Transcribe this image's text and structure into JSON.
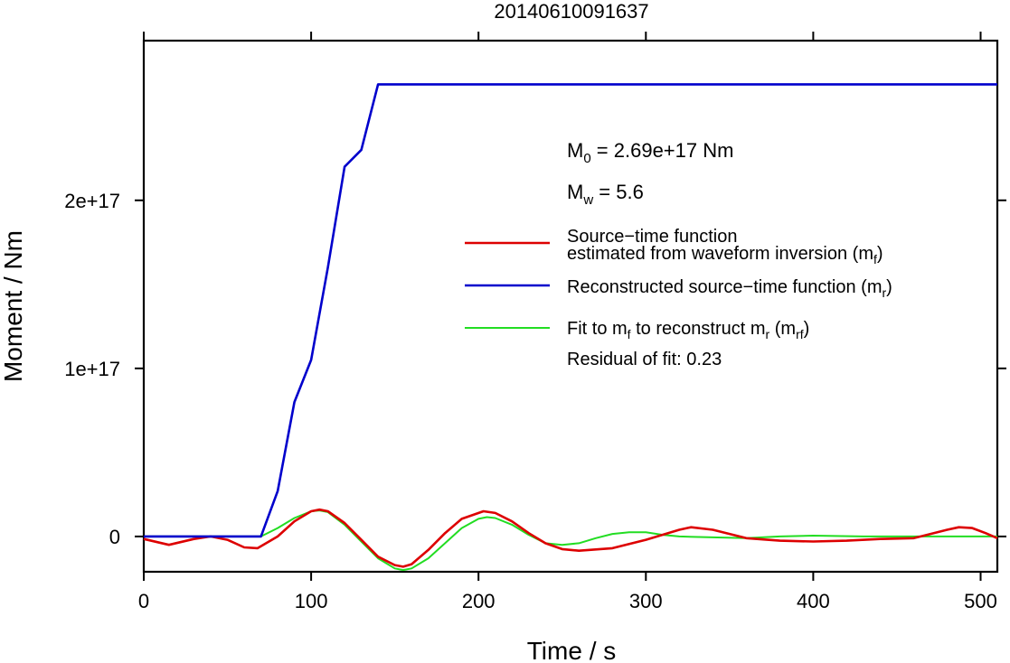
{
  "chart_data": {
    "type": "line",
    "title": "20140610091637",
    "xlabel": "Time / s",
    "ylabel": "Moment / Nm",
    "xlim": [
      0,
      510
    ],
    "ylim": [
      -2.1e+16,
      2.95e+17
    ],
    "x_ticks": [
      0,
      100,
      200,
      300,
      400,
      500
    ],
    "x_tick_labels": [
      "0",
      "100",
      "200",
      "300",
      "400",
      "500"
    ],
    "y_ticks": [
      0,
      1e+17,
      2e+17
    ],
    "y_tick_labels": [
      "0",
      "1e+17",
      "2e+17"
    ],
    "grid": false,
    "annotations": {
      "m0_prefix": "M",
      "m0_sub": "0",
      "m0_rest": " = 2.69e+17 Nm",
      "mw_prefix": "M",
      "mw_sub": "w",
      "mw_rest": " = 5.6"
    },
    "legend": {
      "position": "right",
      "red_line1": "Source−time function",
      "red_line2a": "estimated from waveform inversion (m",
      "red_line2_sub": "f",
      "red_line2b": ")",
      "blue_a": "Reconstructed source−time function (m",
      "blue_sub": "r",
      "blue_b": ")",
      "green_a": "Fit to m",
      "green_sub1": "f",
      "green_b": " to reconstruct m",
      "green_sub2": "r",
      "green_c": " (m",
      "green_sub3": "rf",
      "green_d": ")",
      "residual": "Residual of fit: 0.23"
    },
    "series": [
      {
        "color": "#0000cc",
        "x": [
          0,
          70,
          80,
          90,
          100,
          110,
          120,
          130,
          140,
          510
        ],
        "values": [
          0,
          0,
          2.7e+16,
          8e+16,
          1.05e+17,
          1.6e+17,
          2.2e+17,
          2.3e+17,
          2.69e+17,
          2.69e+17
        ]
      },
      {
        "color": "#dd0000",
        "x": [
          0,
          15,
          30,
          40,
          50,
          60,
          68,
          80,
          90,
          100,
          105,
          110,
          120,
          130,
          140,
          150,
          155,
          160,
          170,
          180,
          190,
          203,
          210,
          220,
          230,
          240,
          250,
          260,
          280,
          300,
          320,
          327,
          340,
          360,
          380,
          400,
          420,
          440,
          460,
          480,
          487,
          495,
          503,
          510
        ],
        "values": [
          -1500000000000000.0,
          -5000000000000000.0,
          -1500000000000000.0,
          0,
          -2000000000000000.0,
          -6500000000000000.0,
          -7000000000000000.0,
          0,
          9000000000000000.0,
          1.5e+16,
          1.6e+16,
          1.5e+16,
          8000000000000000.0,
          -2000000000000000.0,
          -1.2e+16,
          -1.7e+16,
          -1.8e+16,
          -1.65e+16,
          -8000000000000000.0,
          2000000000000000.0,
          1.05e+16,
          1.5e+16,
          1.4e+16,
          9000000000000000.0,
          2000000000000000.0,
          -4000000000000000.0,
          -7500000000000000.0,
          -8500000000000000.0,
          -7000000000000000.0,
          -2000000000000000.0,
          4000000000000000.0,
          5500000000000000.0,
          4000000000000000.0,
          -1000000000000000.0,
          -2500000000000000.0,
          -3000000000000000.0,
          -2500000000000000.0,
          -1500000000000000.0,
          -1000000000000000.0,
          4000000000000000.0,
          5500000000000000.0,
          5000000000000000.0,
          2000000000000000.0,
          -1000000000000000.0
        ]
      },
      {
        "color": "#22dd22",
        "x": [
          0,
          70,
          80,
          90,
          100,
          105,
          110,
          120,
          130,
          140,
          150,
          155,
          160,
          170,
          180,
          190,
          200,
          205,
          210,
          220,
          230,
          240,
          250,
          260,
          270,
          280,
          290,
          300,
          310,
          320,
          340,
          360,
          380,
          400,
          430,
          460,
          480,
          500,
          510
        ],
        "values": [
          0,
          0,
          5000000000000000.0,
          1.1e+16,
          1.5e+16,
          1.55e+16,
          1.45e+16,
          7000000000000000.0,
          -3000000000000000.0,
          -1.3e+16,
          -1.9e+16,
          -2e+16,
          -1.9e+16,
          -1.3e+16,
          -4000000000000000.0,
          5000000000000000.0,
          1.05e+16,
          1.15e+16,
          1.1e+16,
          7000000000000000.0,
          1000000000000000.0,
          -4000000000000000.0,
          -5000000000000000.0,
          -4000000000000000.0,
          -1000000000000000.0,
          1500000000000000.0,
          2500000000000000.0,
          2500000000000000.0,
          1000000000000000.0,
          0,
          -500000000000000.0,
          -1000000000000000.0,
          0,
          500000000000000.0,
          0,
          0,
          0,
          0,
          0
        ]
      }
    ]
  }
}
